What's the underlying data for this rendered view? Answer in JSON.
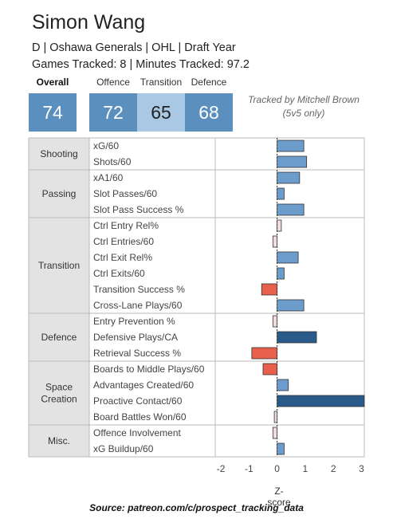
{
  "player": {
    "name": "Simon Wang",
    "meta_line1": "D | Oshawa Generals | OHL | Draft Year",
    "meta_line2": "Games Tracked: 8 | Minutes Tracked: 97.2"
  },
  "scores": {
    "overall_label": "Overall",
    "overall_value": "74",
    "offence_label": "Offence",
    "offence_value": "72",
    "transition_label": "Transition",
    "transition_value": "65",
    "defence_label": "Defence",
    "defence_value": "68"
  },
  "tracked_by": "Tracked by Mitchell Brown (5v5 only)",
  "source": "Source: patreon.com/c/prospect_tracking_data",
  "colors": {
    "positive_light": "#6c9ccb",
    "positive_dark": "#2a5a8a",
    "negative": "#e8604c",
    "near_zero": "#f0dcdc",
    "group_bg": "#e3e3e3",
    "score_box": "#5b8fbe",
    "score_box_light": "#a9c8e4"
  },
  "chart_data": {
    "type": "bar",
    "orientation": "horizontal",
    "xlabel": "Z-score",
    "xlim": [
      -2.2,
      3.1
    ],
    "xticks": [
      -2,
      -1,
      0,
      1,
      2,
      3
    ],
    "groups": [
      {
        "name": "Shooting",
        "metrics": [
          {
            "label": "xG/60",
            "value": 0.95
          },
          {
            "label": "Shots/60",
            "value": 1.05
          }
        ]
      },
      {
        "name": "Passing",
        "metrics": [
          {
            "label": "xA1/60",
            "value": 0.8
          },
          {
            "label": "Slot Passes/60",
            "value": 0.25
          },
          {
            "label": "Slot Pass Success %",
            "value": 0.95
          }
        ]
      },
      {
        "name": "Transition",
        "metrics": [
          {
            "label": "Ctrl Entry Rel%",
            "value": 0.15
          },
          {
            "label": "Ctrl Entries/60",
            "value": -0.15
          },
          {
            "label": "Ctrl Exit Rel%",
            "value": 0.75
          },
          {
            "label": "Ctrl Exits/60",
            "value": 0.25
          },
          {
            "label": "Transition Success %",
            "value": -0.55
          },
          {
            "label": "Cross-Lane Plays/60",
            "value": 0.95
          }
        ]
      },
      {
        "name": "Defence",
        "metrics": [
          {
            "label": "Entry Prevention %",
            "value": -0.15
          },
          {
            "label": "Defensive Plays/CA",
            "value": 1.4
          },
          {
            "label": "Retrieval Success %",
            "value": -0.9
          }
        ]
      },
      {
        "name": "Space Creation",
        "metrics": [
          {
            "label": "Boards to Middle Plays/60",
            "value": -0.5
          },
          {
            "label": "Advantages Created/60",
            "value": 0.4
          },
          {
            "label": "Proactive Contact/60",
            "value": 3.1
          },
          {
            "label": "Board Battles Won/60",
            "value": -0.1
          }
        ]
      },
      {
        "name": "Misc.",
        "metrics": [
          {
            "label": "Offence Involvement",
            "value": -0.15
          },
          {
            "label": "xG Buildup/60",
            "value": 0.25
          }
        ]
      }
    ]
  }
}
